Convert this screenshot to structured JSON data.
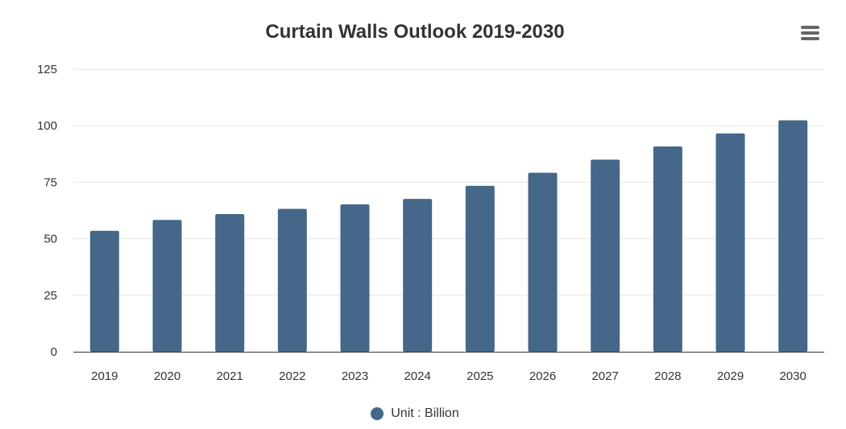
{
  "chart_data": {
    "type": "bar",
    "title": "Curtain Walls Outlook 2019-2030",
    "categories": [
      "2019",
      "2020",
      "2021",
      "2022",
      "2023",
      "2024",
      "2025",
      "2026",
      "2027",
      "2028",
      "2029",
      "2030"
    ],
    "series": [
      {
        "name": "Unit : Billion",
        "values": [
          53.5,
          58.3,
          60.9,
          63.2,
          65.2,
          67.6,
          73.4,
          79.2,
          85.0,
          90.8,
          96.6,
          102.4
        ]
      }
    ],
    "yticks": [
      "0",
      "25",
      "50",
      "75",
      "100",
      "125"
    ],
    "ylim": [
      0,
      125
    ],
    "grid": true,
    "legend_position": "bottom-center",
    "bar_color": "#44678a"
  }
}
